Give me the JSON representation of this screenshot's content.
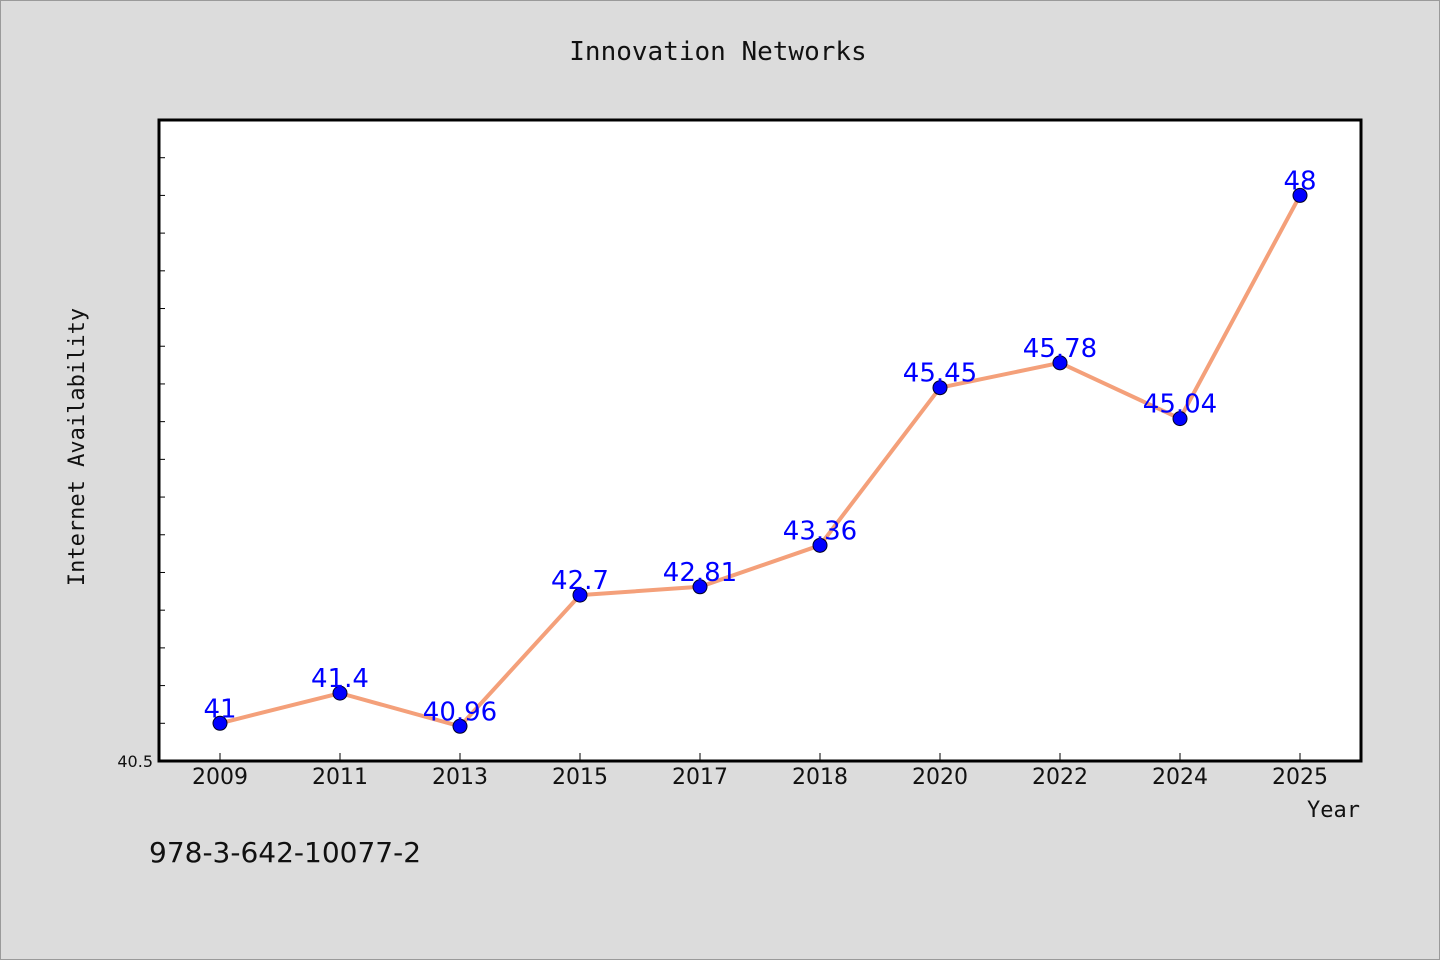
{
  "chart_data": {
    "type": "line",
    "title": "Innovation Networks",
    "xlabel": "Year",
    "ylabel": "Internet Availability",
    "categories": [
      "2009",
      "2011",
      "2013",
      "2015",
      "2017",
      "2018",
      "2020",
      "2022",
      "2024",
      "2025"
    ],
    "values": [
      41,
      41.4,
      40.96,
      42.7,
      42.81,
      43.36,
      45.45,
      45.78,
      45.04,
      48
    ],
    "data_labels": [
      "41",
      "41.4",
      "40.96",
      "42.7",
      "42.81",
      "43.36",
      "45.45",
      "45.78",
      "45.04",
      "48"
    ],
    "ylim": [
      40.5,
      49
    ],
    "yticks_labeled": [
      "40.5"
    ],
    "line_color": "#f4a07a",
    "marker_color": "#0000ff",
    "label_color": "#0000ff",
    "plot_background": "#ffffff",
    "figure_background": "#dcdcdc",
    "grid": false,
    "legend": "none"
  },
  "footnote": "978-3-642-10077-2"
}
